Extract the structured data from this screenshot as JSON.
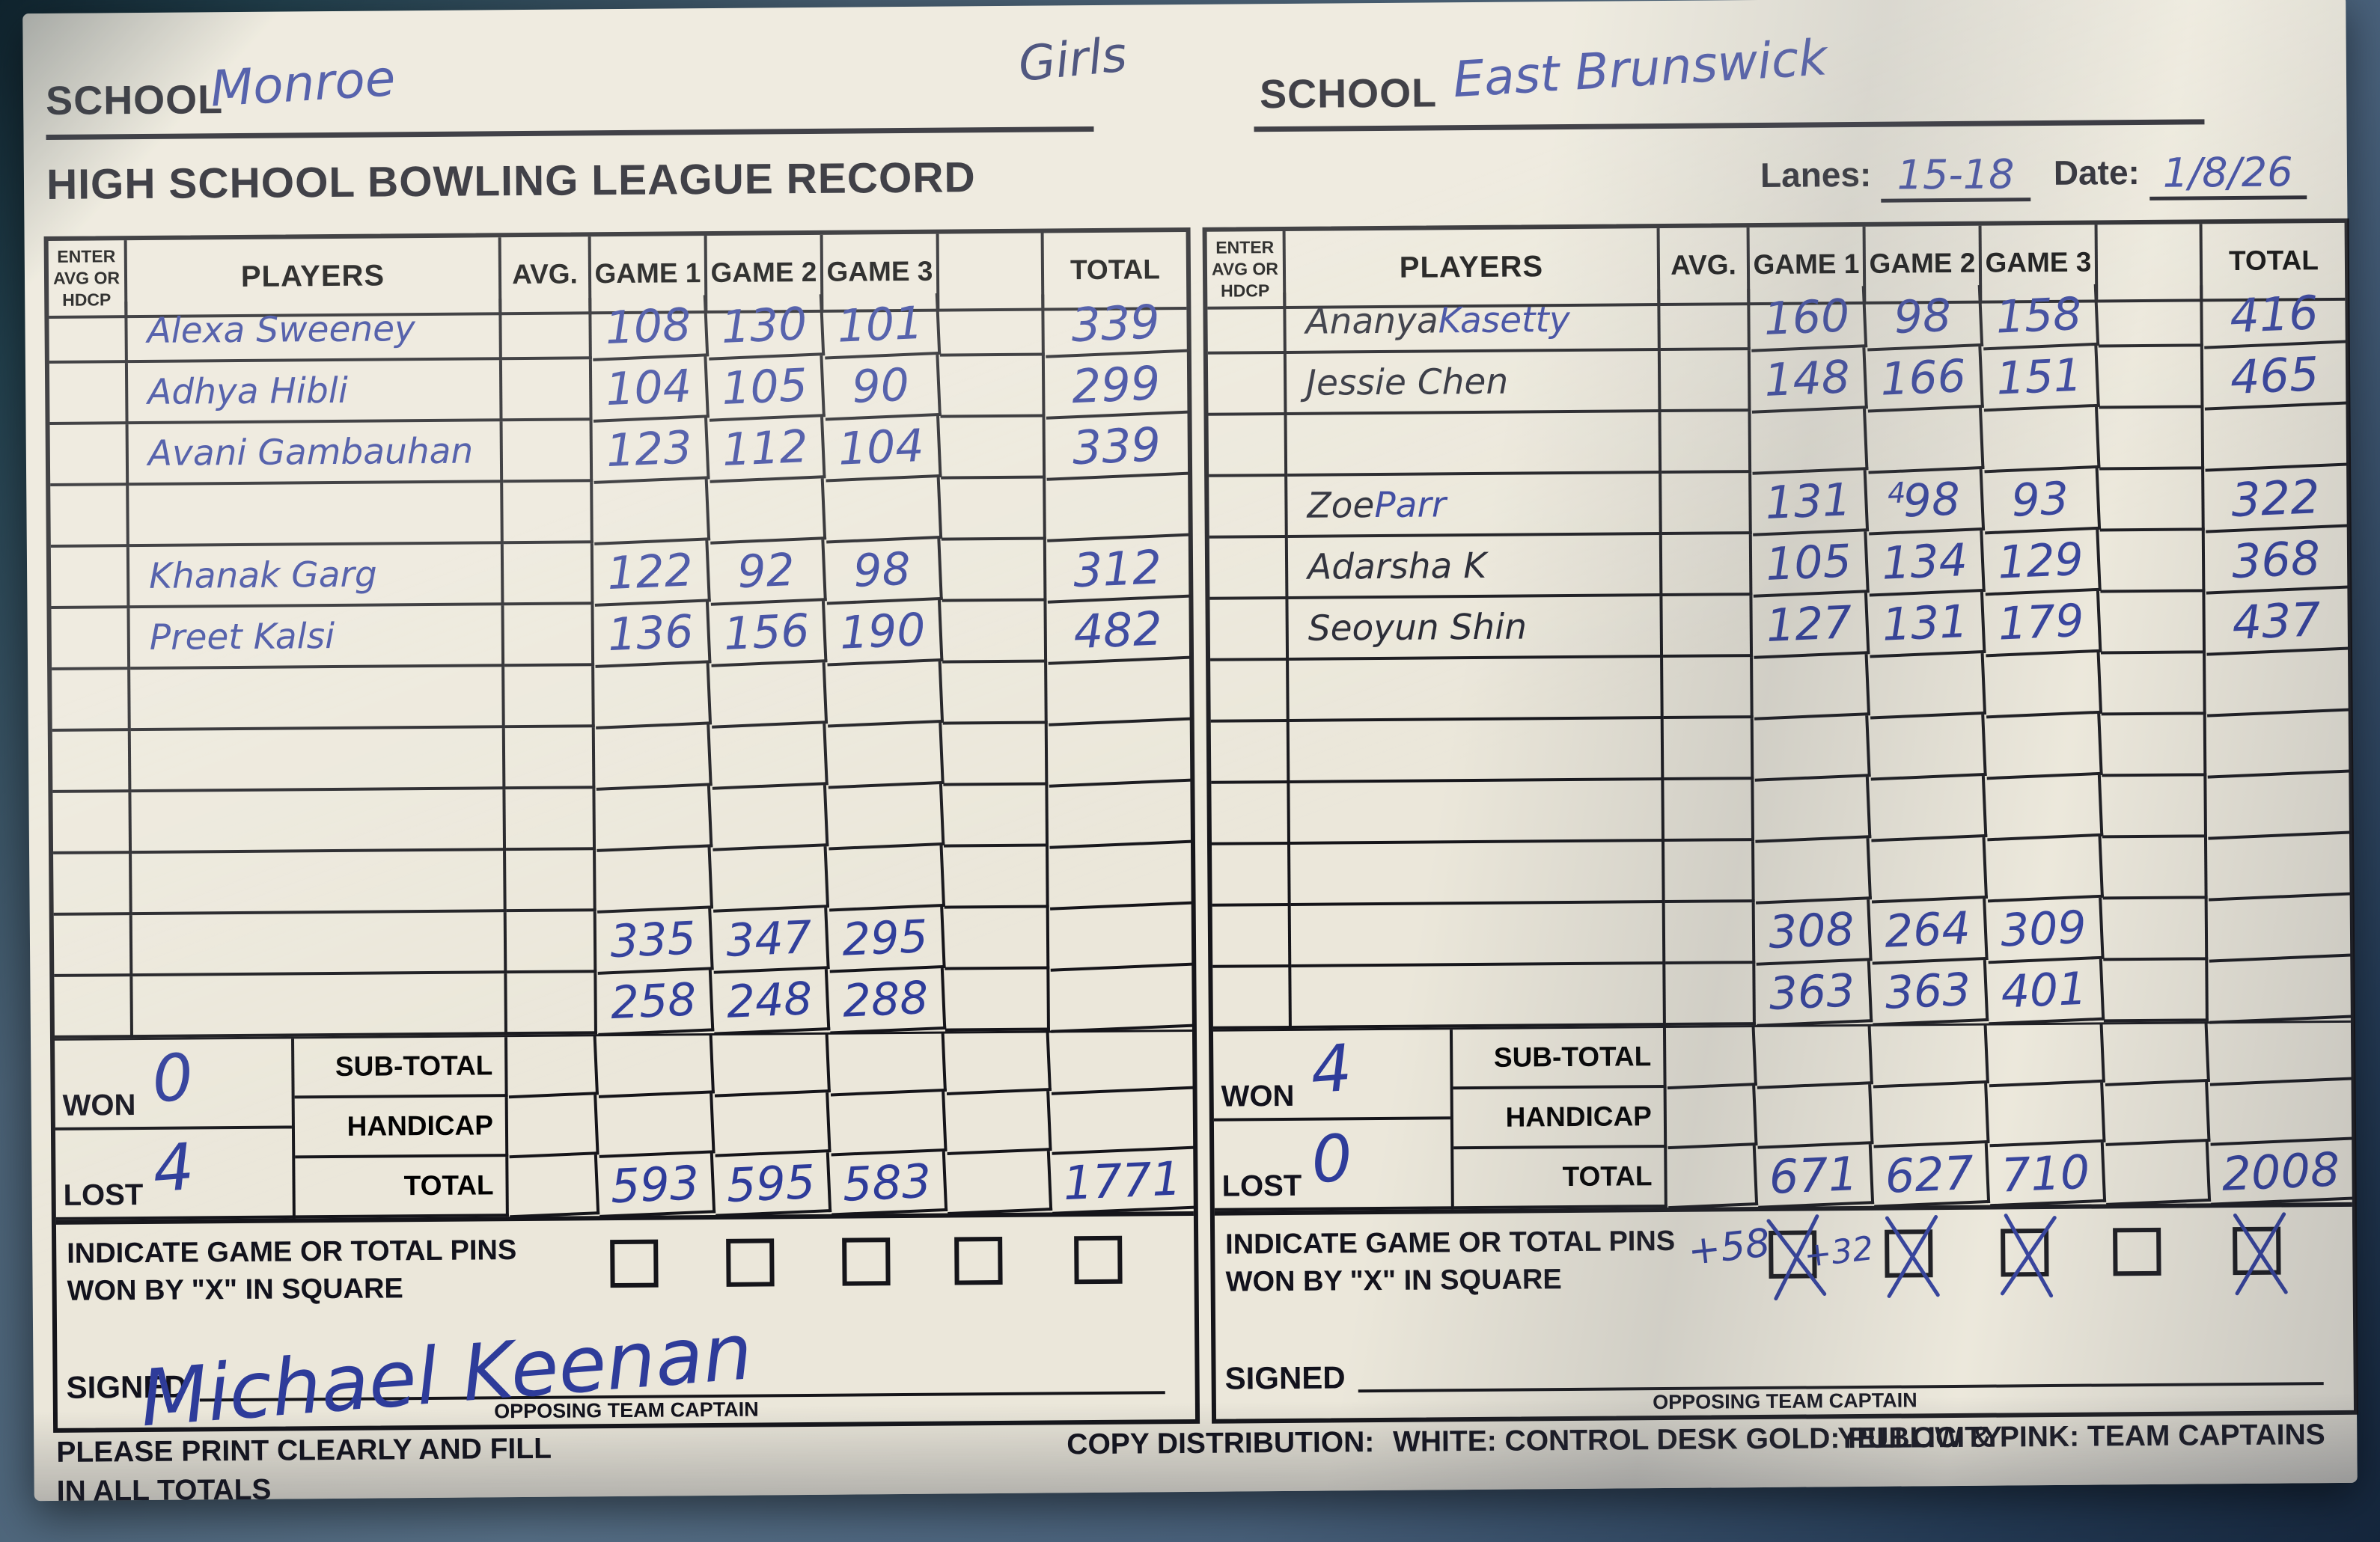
{
  "header": {
    "division": "Girls",
    "school_label": "SCHOOL",
    "left_school": "Monroe",
    "right_school": "East Brunswick",
    "title": "HIGH SCHOOL BOWLING LEAGUE RECORD",
    "lanes_label": "Lanes:",
    "lanes_value": "15-18",
    "date_label": "Date:",
    "date_value": "1/8/26"
  },
  "table_header": {
    "avg_hdcp_lines": [
      "ENTER",
      "AVG OR",
      "HDCP"
    ],
    "players": "PLAYERS",
    "avg": "AVG.",
    "games": [
      "GAME 1",
      "GAME 2",
      "GAME 3"
    ],
    "total": "TOTAL"
  },
  "footer_labels": {
    "won": "WON",
    "lost": "LOST",
    "sub_total": "SUB-TOTAL",
    "handicap": "HANDICAP",
    "total": "TOTAL",
    "indicate_line1": "INDICATE GAME OR TOTAL PINS",
    "indicate_line2": "WON BY \"X\" IN SQUARE",
    "signed": "SIGNED",
    "opposing": "OPPOSING TEAM CAPTAIN"
  },
  "bottom": {
    "print_line1": "PLEASE PRINT CLEARLY AND FILL",
    "print_line2": "IN ALL TOTALS",
    "copy_label": "COPY DISTRIBUTION:",
    "copy_white": "WHITE: CONTROL DESK",
    "copy_gold": "GOLD: PUBLICITY",
    "copy_yellow": "YELLOW & PINK: TEAM CAPTAINS"
  },
  "ink": {
    "blue": "#2e3c9a",
    "black": "#20222e"
  },
  "left_team": {
    "rows": [
      {
        "name": [
          [
            "Alexa Sweeney",
            "blue"
          ]
        ],
        "g1": "108",
        "g2": "130",
        "g3": "101",
        "total": "339"
      },
      {
        "name": [
          [
            "Adhya Hibli",
            "blue"
          ]
        ],
        "g1": "104",
        "g2": "105",
        "g3": "90",
        "total": "299"
      },
      {
        "name": [
          [
            "Avani Gambauhan",
            "blue"
          ]
        ],
        "g1": "123",
        "g2": "112",
        "g3": "104",
        "total": "339"
      },
      {},
      {
        "name": [
          [
            "Khanak Garg",
            "blue"
          ]
        ],
        "g1": "122",
        "g2": "92",
        "g3": "98",
        "total": "312"
      },
      {
        "name": [
          [
            "Preet Kalsi",
            "blue"
          ]
        ],
        "g1": "136",
        "g2": "156",
        "g3": "190",
        "total": "482"
      },
      {},
      {},
      {},
      {},
      {
        "g1": "335",
        "g2": "347",
        "g3": "295"
      },
      {
        "g1": "258",
        "g2": "248",
        "g3": "288"
      }
    ],
    "won": "0",
    "lost": "4",
    "totals": {
      "g1": "593",
      "g2": "595",
      "g3": "583",
      "total": "1771"
    },
    "checkboxes": [
      {
        "checked": false,
        "note": ""
      },
      {
        "checked": false,
        "note": ""
      },
      {
        "checked": false,
        "note": ""
      },
      {
        "checked": false,
        "note": ""
      },
      {
        "checked": false,
        "note": ""
      }
    ],
    "signature": "Michael Keenan"
  },
  "right_team": {
    "rows": [
      {
        "name": [
          [
            "Ananya ",
            "black"
          ],
          [
            "Kasetty",
            "blue"
          ]
        ],
        "g1": "160",
        "g2": "98",
        "g3": "158",
        "total": "416"
      },
      {
        "name": [
          [
            "Jessie Chen",
            "black"
          ]
        ],
        "g1": "148",
        "g2": "166",
        "g3": "151",
        "total": "465"
      },
      {},
      {
        "name": [
          [
            "Zoe ",
            "black"
          ],
          [
            "Parr",
            "blue"
          ]
        ],
        "g1": "131",
        "g2": "98",
        "g2_prefix": "4",
        "g3": "93",
        "total": "322"
      },
      {
        "name": [
          [
            "Adarsha K",
            "black"
          ]
        ],
        "g1": "105",
        "g2": "134",
        "g3": "129",
        "total": "368"
      },
      {
        "name": [
          [
            "Seoyun Shin",
            "black"
          ]
        ],
        "g1": "127",
        "g2": "131",
        "g3": "179",
        "total": "437"
      },
      {},
      {},
      {},
      {},
      {
        "g1": "308",
        "g2": "264",
        "g3": "309"
      },
      {
        "g1": "363",
        "g2": "363",
        "g3": "401"
      }
    ],
    "won": "4",
    "lost": "0",
    "totals": {
      "g1": "671",
      "g2": "627",
      "g3": "710",
      "total": "2008"
    },
    "checkboxes": [
      {
        "checked": true,
        "note": "+58"
      },
      {
        "checked": true,
        "note": "+32"
      },
      {
        "checked": true,
        "note": ""
      },
      {
        "checked": false,
        "note": ""
      },
      {
        "checked": true,
        "note": ""
      }
    ],
    "signature": ""
  }
}
